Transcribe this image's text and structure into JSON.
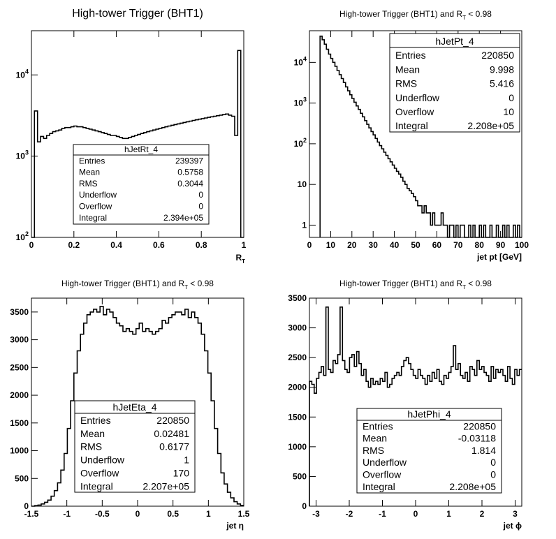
{
  "chart_data": [
    {
      "type": "histogram",
      "title": "High-tower Trigger (BHT1)",
      "xlabel": "R",
      "xlabel_sub": "T",
      "ylabel": "",
      "xlim": [
        0,
        1
      ],
      "ylim": [
        100,
        35000
      ],
      "log_y": true,
      "x_ticks": [
        "0",
        "0.2",
        "0.4",
        "0.6",
        "0.8",
        "1"
      ],
      "y_ticks": [
        "10^2",
        "10^3",
        "10^4"
      ],
      "bin_edges_range": [
        0,
        1
      ],
      "values": [
        100,
        3600,
        1500,
        1750,
        1650,
        1800,
        1900,
        2000,
        2050,
        2100,
        2200,
        2250,
        2250,
        2300,
        2350,
        2300,
        2300,
        2250,
        2200,
        2150,
        2100,
        2050,
        2000,
        1950,
        1900,
        1850,
        1800,
        1800,
        1750,
        1700,
        1650,
        1650,
        1700,
        1750,
        1800,
        1850,
        1900,
        1950,
        2000,
        2050,
        2100,
        2150,
        2200,
        2250,
        2300,
        2350,
        2400,
        2450,
        2500,
        2550,
        2600,
        2650,
        2700,
        2750,
        2800,
        2850,
        2900,
        2950,
        3000,
        3050,
        3100,
        3150,
        3200,
        3250,
        3300,
        3200,
        3100,
        1800,
        20000,
        100
      ],
      "stats": {
        "name": "hJetRt_4",
        "rows": [
          {
            "label": "Entries",
            "value": "239397"
          },
          {
            "label": "Mean",
            "value": "0.5758"
          },
          {
            "label": "RMS",
            "value": "0.3044"
          },
          {
            "label": "Underflow",
            "value": "0"
          },
          {
            "label": "Overflow",
            "value": "0"
          },
          {
            "label": "Integral",
            "value": "2.394e+05"
          }
        ]
      }
    },
    {
      "type": "histogram",
      "title": "High-tower Trigger (BHT1) and R",
      "title_sub": "T",
      "title_tail": "< 0.98",
      "xlabel": "jet pt [GeV]",
      "ylabel": "",
      "xlim": [
        0,
        100
      ],
      "ylim": [
        0.5,
        60000
      ],
      "log_y": true,
      "x_ticks": [
        "0",
        "10",
        "20",
        "30",
        "40",
        "50",
        "60",
        "70",
        "80",
        "90",
        "100"
      ],
      "y_ticks": [
        "1",
        "10",
        "10^2",
        "10^3",
        "10^4"
      ],
      "bin_edges_range": [
        5,
        100
      ],
      "values": [
        44000,
        36000,
        28000,
        21000,
        16000,
        12500,
        10000,
        8000,
        6300,
        5000,
        4000,
        3200,
        2500,
        2000,
        1600,
        1300,
        1050,
        850,
        700,
        560,
        460,
        370,
        300,
        245,
        200,
        165,
        135,
        110,
        90,
        75,
        62,
        52,
        43,
        36,
        30,
        25,
        21,
        18,
        15,
        12,
        10,
        8,
        7,
        6,
        5,
        4,
        3,
        3,
        2,
        3,
        2,
        2,
        1,
        2,
        1,
        1,
        1,
        2,
        1,
        1,
        0,
        1,
        1,
        0,
        1,
        0,
        1,
        1,
        0,
        0,
        1,
        0,
        1,
        0,
        0,
        1,
        0,
        1,
        0,
        0,
        1,
        0,
        0,
        1,
        0,
        0,
        1,
        0,
        1,
        0,
        0,
        1,
        0,
        1,
        0
      ],
      "stats": {
        "name": "hJetPt_4",
        "rows": [
          {
            "label": "Entries",
            "value": "220850"
          },
          {
            "label": "Mean",
            "value": "9.998"
          },
          {
            "label": "RMS",
            "value": "5.416"
          },
          {
            "label": "Underflow",
            "value": "0"
          },
          {
            "label": "Overflow",
            "value": "10"
          },
          {
            "label": "Integral",
            "value": "2.208e+05"
          }
        ]
      }
    },
    {
      "type": "histogram",
      "title": "High-tower Trigger (BHT1) and R",
      "title_sub": "T",
      "title_tail": "< 0.98",
      "xlabel": "jet η",
      "ylabel": "",
      "xlim": [
        -1.5,
        1.5
      ],
      "ylim": [
        0,
        3750
      ],
      "log_y": false,
      "x_ticks": [
        "-1.5",
        "-1",
        "-0.5",
        "0",
        "0.5",
        "1",
        "1.5"
      ],
      "y_ticks": [
        "0",
        "500",
        "1000",
        "1500",
        "2000",
        "2500",
        "3000",
        "3500"
      ],
      "bin_edges_range": [
        -1.5,
        1.5
      ],
      "values": [
        0,
        10,
        20,
        40,
        70,
        110,
        180,
        280,
        420,
        650,
        950,
        1400,
        1900,
        2400,
        2800,
        3100,
        3300,
        3450,
        3500,
        3550,
        3500,
        3600,
        3450,
        3550,
        3500,
        3400,
        3300,
        3250,
        3150,
        3200,
        3150,
        3100,
        3200,
        3300,
        3150,
        3200,
        3150,
        3100,
        3150,
        3200,
        3350,
        3300,
        3400,
        3450,
        3500,
        3500,
        3450,
        3550,
        3400,
        3500,
        3400,
        3300,
        3100,
        2800,
        2400,
        1900,
        1400,
        950,
        600,
        400,
        250,
        150,
        80,
        40,
        15
      ],
      "stats": {
        "name": "hJetEta_4",
        "rows": [
          {
            "label": "Entries",
            "value": "220850"
          },
          {
            "label": "Mean",
            "value": "0.02481"
          },
          {
            "label": "RMS",
            "value": "0.6177"
          },
          {
            "label": "Underflow",
            "value": "1"
          },
          {
            "label": "Overflow",
            "value": "170"
          },
          {
            "label": "Integral",
            "value": "2.207e+05"
          }
        ]
      }
    },
    {
      "type": "histogram",
      "title": "High-tower Trigger (BHT1) and R",
      "title_sub": "T",
      "title_tail": "< 0.98",
      "xlabel": "jet ϕ",
      "ylabel": "",
      "xlim": [
        -3.2,
        3.2
      ],
      "ylim": [
        0,
        3500
      ],
      "log_y": false,
      "x_ticks": [
        "-3",
        "-2",
        "-1",
        "0",
        "1",
        "2",
        "3"
      ],
      "y_ticks": [
        "0",
        "500",
        "1000",
        "1500",
        "2000",
        "2500",
        "3000",
        "3500"
      ],
      "bin_edges_range": [
        -3.2,
        3.2
      ],
      "values": [
        2100,
        2050,
        1900,
        2150,
        2250,
        2350,
        2200,
        3350,
        2300,
        2250,
        2450,
        2400,
        2550,
        3350,
        2450,
        2300,
        2250,
        2500,
        2550,
        2350,
        2600,
        2400,
        2200,
        2300,
        2100,
        2000,
        2150,
        2050,
        2100,
        2050,
        2150,
        2100,
        2250,
        2000,
        2050,
        2150,
        2200,
        2250,
        2200,
        2350,
        2450,
        2500,
        2400,
        2300,
        2200,
        2150,
        2300,
        2200,
        2150,
        2050,
        2200,
        2100,
        2250,
        2150,
        2300,
        2100,
        2050,
        2200,
        2150,
        2250,
        2350,
        2700,
        2300,
        2400,
        2200,
        2150,
        2250,
        2100,
        2350,
        2300,
        2200,
        2450,
        2300,
        2350,
        2250,
        2200,
        2100,
        2350,
        2150,
        2300,
        2250,
        2300,
        2200,
        2100,
        2350,
        2150,
        2050,
        2300,
        2200,
        2300
      ],
      "stats": {
        "name": "hJetPhi_4",
        "rows": [
          {
            "label": "Entries",
            "value": "220850"
          },
          {
            "label": "Mean",
            "value": "-0.03118"
          },
          {
            "label": "RMS",
            "value": "1.814"
          },
          {
            "label": "Underflow",
            "value": "0"
          },
          {
            "label": "Overflow",
            "value": "0"
          },
          {
            "label": "Integral",
            "value": "2.208e+05"
          }
        ]
      }
    }
  ]
}
